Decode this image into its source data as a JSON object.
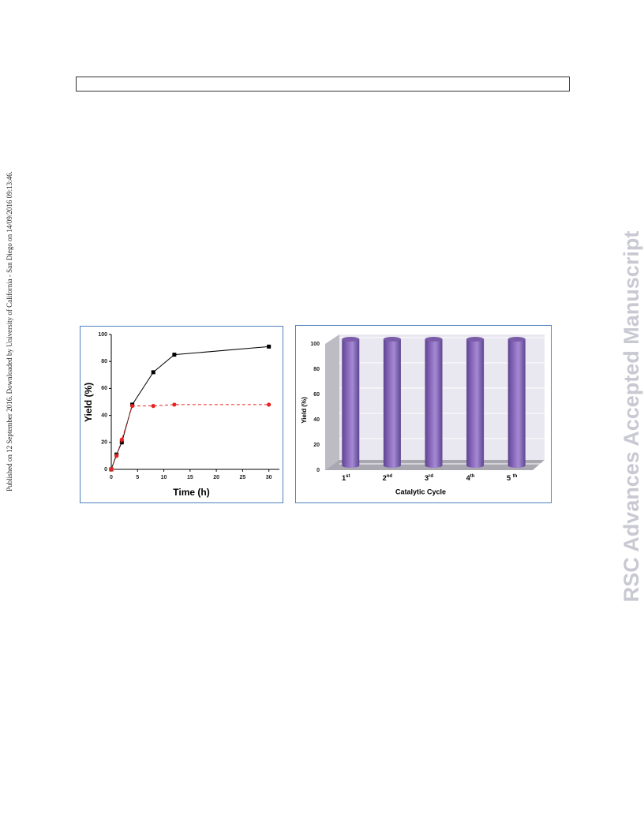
{
  "side_note": "Published on 12 September 2016. Downloaded by University of California - San Diego on 14/09/2016 09:13:46.",
  "watermark": "RSC Advances Accepted Manuscript",
  "chart_data": [
    {
      "type": "line",
      "xlabel": "Time (h)",
      "ylabel": "Yield (%)",
      "x": [
        0,
        1,
        2,
        4,
        8,
        12,
        30
      ],
      "series": [
        {
          "color": "#000000",
          "marker": "square",
          "linestyle": "solid",
          "values": [
            0,
            11,
            20,
            48,
            72,
            85,
            91
          ]
        },
        {
          "color": "#e8231f",
          "marker": "circle",
          "linestyle": "dashed",
          "values": [
            0,
            10,
            22,
            47,
            47,
            48,
            48
          ]
        }
      ],
      "xlim": [
        0,
        32
      ],
      "xticks": [
        0,
        5,
        10,
        15,
        20,
        25,
        30
      ],
      "ylim": [
        0,
        100
      ],
      "yticks": [
        0,
        20,
        40,
        60,
        80,
        100
      ]
    },
    {
      "type": "bar",
      "xlabel": "Catalytic Cycle",
      "ylabel": "Yield (%)",
      "categories": [
        "1st",
        "2nd",
        "3rd",
        "4th",
        "5 th"
      ],
      "values": [
        100,
        100,
        100,
        100,
        100
      ],
      "color": "#8d6cc0",
      "ylim": [
        0,
        100
      ],
      "yticks": [
        0,
        20,
        40,
        60,
        80,
        100
      ],
      "grid": true
    }
  ]
}
